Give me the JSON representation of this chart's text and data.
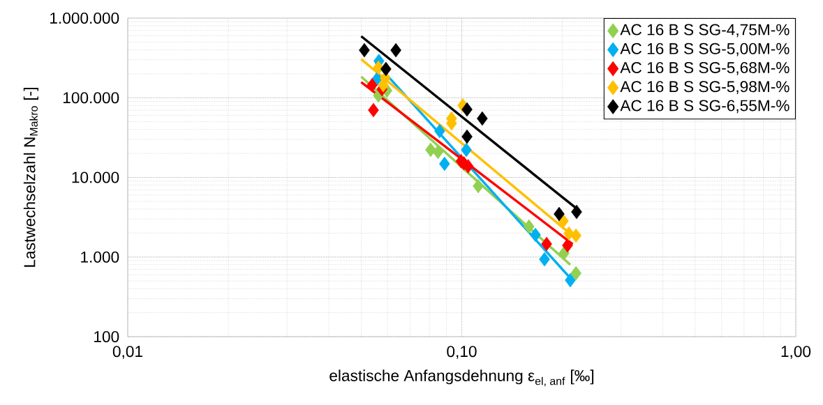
{
  "chart_data": {
    "type": "scatter",
    "xlabel": "\\text{elastische Anfangsdehnung ε}_{\\text{el, anf}}\\text{ [‰]}",
    "ylabel": "Lastwechselzahl N$_{Makro}$ [-]",
    "log": "xy",
    "grid": true,
    "legend": "top right",
    "marker": "diamond",
    "xlim": [
      0.01,
      1
    ],
    "ylim": [
      100,
      1000000
    ],
    "xticks": [
      {
        "value": 0.01,
        "label": "0,01"
      },
      {
        "value": 0.1,
        "label": "0,10"
      },
      {
        "value": 1,
        "label": "1,00"
      }
    ],
    "yticks": [
      {
        "value": 100,
        "label": "100"
      },
      {
        "value": 1000,
        "label": "1.000"
      },
      {
        "value": 10000,
        "label": "10.000"
      },
      {
        "value": 100000,
        "label": "100.000"
      },
      {
        "value": 1000000,
        "label": "1.000.000"
      }
    ],
    "series": [
      {
        "name": "AC 16 B S SG-4,75M-%",
        "color": "#92d050",
        "x": [
          0.0563,
          0.0597,
          0.0807,
          0.0849,
          0.112,
          0.159,
          0.2025,
          0.2198
        ],
        "values": [
          107000,
          123000,
          22200,
          20900,
          7780,
          2415,
          1123,
          626
        ]
      },
      {
        "name": "AC 16 B S SG-5,00M-%",
        "color": "#00b0f0",
        "x": [
          0.0565,
          0.0558,
          0.0859,
          0.0888,
          0.1032,
          0.1662,
          0.1769,
          0.2113
        ],
        "values": [
          290000,
          173000,
          38200,
          14800,
          22200,
          1895,
          937,
          512
        ]
      },
      {
        "name": "AC 16 B S SG-5,68M-%",
        "color": "#ff0000",
        "x": [
          0.0539,
          0.0544,
          0.0577,
          0.0995,
          0.1015,
          0.1045,
          0.1795,
          0.2073
        ],
        "values": [
          144000,
          70000,
          128000,
          16000,
          15000,
          13800,
          1460,
          1400
        ]
      },
      {
        "name": "AC 16 B S SG-5,98M-%",
        "color": "#ffc000",
        "x": [
          0.0563,
          0.059,
          0.0582,
          0.1007,
          0.0932,
          0.0932,
          0.2014,
          0.2093,
          0.2198
        ],
        "values": [
          239000,
          177000,
          144000,
          80000,
          54900,
          47700,
          2840,
          1975,
          1860
        ]
      },
      {
        "name": "AC 16 B S SG-6,55M-%",
        "color": "#000000",
        "x": [
          0.0511,
          0.0635,
          0.0593,
          0.1037,
          0.1152,
          0.1037,
          0.1957,
          0.2207
        ],
        "values": [
          395000,
          395000,
          229700,
          71300,
          54900,
          32500,
          3470,
          3690
        ]
      },
      {
        "type": "line",
        "marker": "none",
        "color": "#92d050",
        "x": [
          0.05,
          0.2113
        ],
        "values": [
          184000,
          800
        ]
      },
      {
        "type": "line",
        "marker": "none",
        "color": "#00b0f0",
        "x": [
          0.0553,
          0.21
        ],
        "values": [
          275000,
          560
        ]
      },
      {
        "type": "line",
        "marker": "none",
        "color": "#ff0000",
        "x": [
          0.05,
          0.215
        ],
        "values": [
          157000,
          1450
        ]
      },
      {
        "type": "line",
        "marker": "none",
        "color": "#ffc000",
        "x": [
          0.05,
          0.22
        ],
        "values": [
          305000,
          1700
        ]
      },
      {
        "type": "line",
        "marker": "none",
        "color": "#000000",
        "x": [
          0.05,
          0.223
        ],
        "values": [
          592000,
          3920
        ]
      }
    ]
  }
}
